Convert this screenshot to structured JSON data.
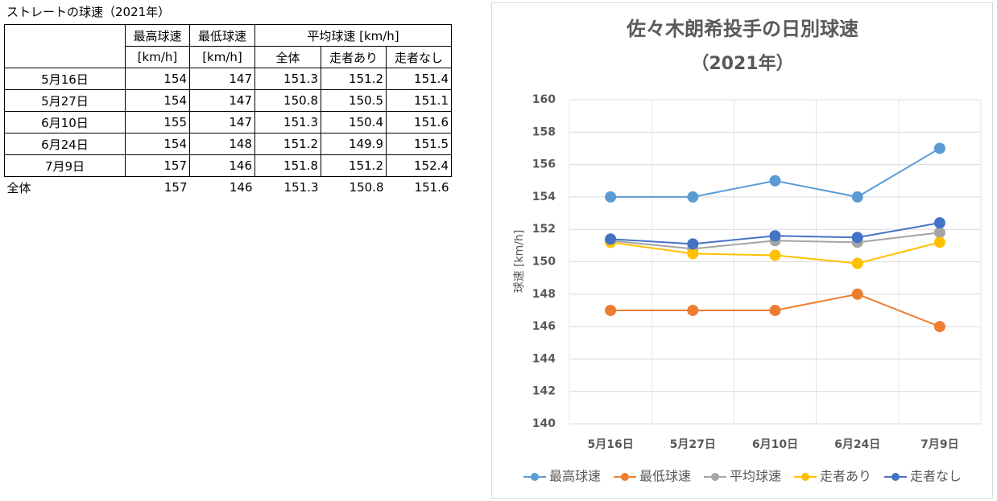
{
  "table": {
    "title": "ストレートの球速（2021年）",
    "header_top": [
      "最高球速",
      "最低球速",
      "平均球速 [km/h]"
    ],
    "header_sub": [
      "[km/h]",
      "[km/h]",
      "全体",
      "走者あり",
      "走者なし"
    ],
    "rows": [
      [
        "5月16日",
        154,
        147,
        151.3,
        151.2,
        151.4
      ],
      [
        "5月27日",
        154,
        147,
        150.8,
        150.5,
        151.1
      ],
      [
        "6月10日",
        155,
        147,
        151.3,
        150.4,
        151.6
      ],
      [
        "6月24日",
        154,
        148,
        151.2,
        149.9,
        151.5
      ],
      [
        "7月9日",
        157,
        146,
        151.8,
        151.2,
        152.4
      ]
    ],
    "total": [
      "全体",
      157,
      146,
      151.3,
      150.8,
      151.6
    ]
  },
  "chart_data": {
    "type": "line",
    "title": "佐々木朗希投手の日別球速",
    "subtitle": "（2021年）",
    "y_label": "球速 [km/h]",
    "categories": [
      "5月16日",
      "5月27日",
      "6月10日",
      "6月24日",
      "7月9日"
    ],
    "series": [
      {
        "name": "最高球速",
        "color": "#5b9bd5",
        "values": [
          154,
          154,
          155,
          154,
          157
        ]
      },
      {
        "name": "最低球速",
        "color": "#ed7d31",
        "values": [
          147,
          147,
          147,
          148,
          146
        ]
      },
      {
        "name": "平均球速",
        "color": "#a5a5a5",
        "values": [
          151.3,
          150.8,
          151.3,
          151.2,
          151.8
        ]
      },
      {
        "name": "走者あり",
        "color": "#ffc000",
        "values": [
          151.2,
          150.5,
          150.4,
          149.9,
          151.2
        ]
      },
      {
        "name": "走者なし",
        "color": "#4472c4",
        "values": [
          151.4,
          151.1,
          151.6,
          151.5,
          152.4
        ]
      }
    ],
    "ylim": [
      140,
      160
    ],
    "yticks": [
      140,
      142,
      144,
      146,
      148,
      150,
      152,
      154,
      156,
      158,
      160
    ],
    "grid": true,
    "legend": "bottom"
  }
}
